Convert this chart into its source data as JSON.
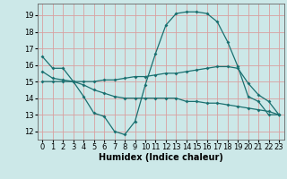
{
  "title": "",
  "xlabel": "Humidex (Indice chaleur)",
  "background_color": "#cce8e8",
  "grid_color": "#d8a0a0",
  "line_color": "#1a7070",
  "xlim": [
    -0.5,
    23.5
  ],
  "ylim": [
    11.5,
    19.7
  ],
  "yticks": [
    12,
    13,
    14,
    15,
    16,
    17,
    18,
    19
  ],
  "xticks": [
    0,
    1,
    2,
    3,
    4,
    5,
    6,
    7,
    8,
    9,
    10,
    11,
    12,
    13,
    14,
    15,
    16,
    17,
    18,
    19,
    20,
    21,
    22,
    23
  ],
  "line1_x": [
    0,
    1,
    2,
    3,
    4,
    5,
    6,
    7,
    8,
    9,
    10,
    11,
    12,
    13,
    14,
    15,
    16,
    17,
    18,
    19,
    20,
    21,
    22,
    23
  ],
  "line1_y": [
    16.5,
    15.8,
    15.8,
    15.0,
    14.1,
    13.1,
    12.9,
    12.0,
    11.8,
    12.6,
    14.8,
    16.7,
    18.4,
    19.1,
    19.2,
    19.2,
    19.1,
    18.6,
    17.4,
    15.9,
    14.1,
    13.8,
    13.0,
    13.0
  ],
  "line2_x": [
    0,
    1,
    2,
    3,
    4,
    5,
    6,
    7,
    8,
    9,
    10,
    11,
    12,
    13,
    14,
    15,
    16,
    17,
    18,
    19,
    20,
    21,
    22,
    23
  ],
  "line2_y": [
    15.6,
    15.2,
    15.1,
    15.0,
    15.0,
    15.0,
    15.1,
    15.1,
    15.2,
    15.3,
    15.3,
    15.4,
    15.5,
    15.5,
    15.6,
    15.7,
    15.8,
    15.9,
    15.9,
    15.8,
    14.9,
    14.2,
    13.8,
    13.0
  ],
  "line3_x": [
    0,
    1,
    2,
    3,
    4,
    5,
    6,
    7,
    8,
    9,
    10,
    11,
    12,
    13,
    14,
    15,
    16,
    17,
    18,
    19,
    20,
    21,
    22,
    23
  ],
  "line3_y": [
    15.0,
    15.0,
    15.0,
    15.0,
    14.8,
    14.5,
    14.3,
    14.1,
    14.0,
    14.0,
    14.0,
    14.0,
    14.0,
    14.0,
    13.8,
    13.8,
    13.7,
    13.7,
    13.6,
    13.5,
    13.4,
    13.3,
    13.2,
    13.0
  ],
  "tick_fontsize": 6,
  "xlabel_fontsize": 7,
  "marker_size": 2,
  "linewidth": 0.9
}
